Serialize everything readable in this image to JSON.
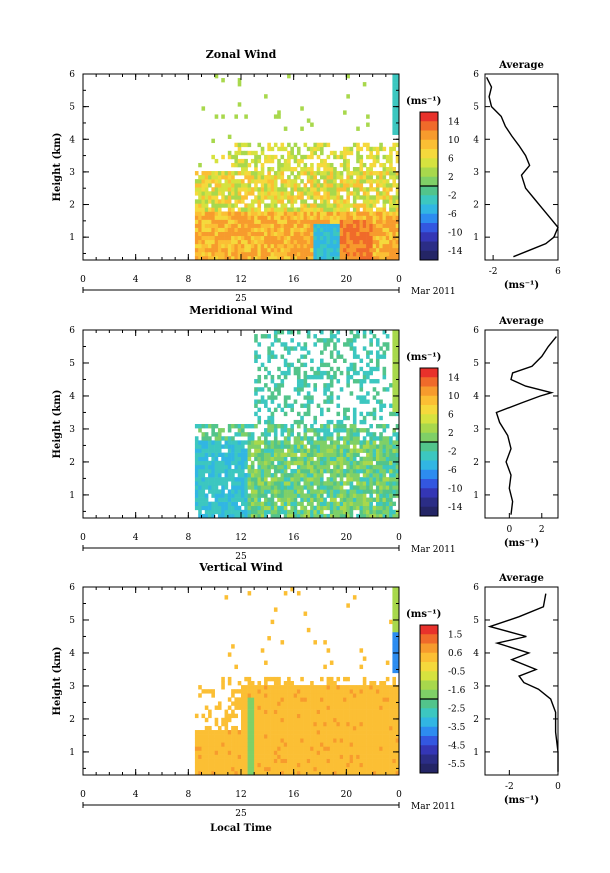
{
  "chart_data": [
    {
      "type": "heatmap",
      "title": "Zonal Wind",
      "ylabel": "Height (km)",
      "xlabel": "",
      "xlim": [
        0,
        24
      ],
      "ylim": [
        0.3,
        6
      ],
      "xticks": [
        "0",
        "4",
        "8",
        "12",
        "16",
        "20",
        "0"
      ],
      "yticks": [
        "1",
        "2",
        "3",
        "4",
        "5",
        "6"
      ],
      "date_day": "25",
      "date_month": "Mar 2011",
      "colorbar": {
        "unit_label": "(ms⁻¹)",
        "ticks": [
          "14",
          "10",
          "6",
          "2",
          "-2",
          "-6",
          "-10",
          "-14"
        ]
      },
      "profile": {
        "title": "Average",
        "xlabel": "(ms⁻¹)",
        "xticks": [
          "-2",
          "6"
        ],
        "x_range": [
          -3,
          6
        ],
        "points": [
          [
            0.5,
            0.4
          ],
          [
            2.5,
            0.6
          ],
          [
            4.5,
            0.8
          ],
          [
            5.5,
            1.0
          ],
          [
            6,
            1.3
          ],
          [
            5,
            1.6
          ],
          [
            4,
            1.9
          ],
          [
            3,
            2.2
          ],
          [
            2,
            2.5
          ],
          [
            1.5,
            2.9
          ],
          [
            2.5,
            3.2
          ],
          [
            2,
            3.5
          ],
          [
            1.2,
            3.8
          ],
          [
            0.3,
            4.1
          ],
          [
            -0.5,
            4.4
          ],
          [
            -1,
            4.7
          ],
          [
            -2.2,
            5.0
          ],
          [
            -2.5,
            5.3
          ],
          [
            -2.2,
            5.6
          ],
          [
            -2.8,
            5.9
          ]
        ]
      },
      "show_local_time": false
    },
    {
      "type": "heatmap",
      "title": "Meridional Wind",
      "ylabel": "Height (km)",
      "xlabel": "",
      "xlim": [
        0,
        24
      ],
      "ylim": [
        0.3,
        6
      ],
      "xticks": [
        "0",
        "4",
        "8",
        "12",
        "16",
        "20",
        "0"
      ],
      "yticks": [
        "1",
        "2",
        "3",
        "4",
        "5",
        "6"
      ],
      "date_day": "25",
      "date_month": "Mar 2011",
      "colorbar": {
        "unit_label": "(ms⁻¹)",
        "ticks": [
          "14",
          "10",
          "6",
          "2",
          "-2",
          "-6",
          "-10",
          "-14"
        ]
      },
      "profile": {
        "title": "Average",
        "xlabel": "(ms⁻¹)",
        "xticks": [
          "0",
          "2"
        ],
        "x_range": [
          -1.5,
          3
        ],
        "points": [
          [
            0.1,
            0.4
          ],
          [
            0.2,
            0.8
          ],
          [
            0,
            1.2
          ],
          [
            0.1,
            1.6
          ],
          [
            -0.2,
            2.0
          ],
          [
            0.1,
            2.4
          ],
          [
            -0.1,
            2.8
          ],
          [
            -0.6,
            3.2
          ],
          [
            -0.8,
            3.5
          ],
          [
            0.8,
            3.8
          ],
          [
            1.9,
            4.0
          ],
          [
            2.6,
            4.1
          ],
          [
            1.0,
            4.3
          ],
          [
            0.1,
            4.5
          ],
          [
            0.2,
            4.7
          ],
          [
            1.4,
            4.9
          ],
          [
            2.0,
            5.2
          ],
          [
            2.4,
            5.5
          ],
          [
            2.9,
            5.8
          ]
        ]
      },
      "show_local_time": false
    },
    {
      "type": "heatmap",
      "title": "Vertical Wind",
      "ylabel": "Height (km)",
      "xlabel": "Local Time",
      "xlim": [
        0,
        24
      ],
      "ylim": [
        0.3,
        6
      ],
      "xticks": [
        "0",
        "4",
        "8",
        "12",
        "16",
        "20",
        "0"
      ],
      "yticks": [
        "1",
        "2",
        "3",
        "4",
        "5",
        "6"
      ],
      "date_day": "25",
      "date_month": "Mar 2011",
      "colorbar": {
        "unit_label": "(ms⁻¹)",
        "ticks": [
          "1.5",
          "0.6",
          "-0.5",
          "-1.6",
          "-2.5",
          "-3.5",
          "-4.5",
          "-5.5"
        ]
      },
      "profile": {
        "title": "Average",
        "xlabel": "(ms⁻¹)",
        "xticks": [
          "-2",
          "0"
        ],
        "x_range": [
          -3,
          0
        ],
        "points": [
          [
            0,
            0.4
          ],
          [
            0,
            1.0
          ],
          [
            -0.1,
            1.6
          ],
          [
            -0.1,
            2.2
          ],
          [
            -0.3,
            2.6
          ],
          [
            -0.8,
            2.9
          ],
          [
            -1.4,
            3.1
          ],
          [
            -1.6,
            3.3
          ],
          [
            -0.9,
            3.5
          ],
          [
            -1.9,
            3.8
          ],
          [
            -1.2,
            4.0
          ],
          [
            -2.5,
            4.3
          ],
          [
            -1.3,
            4.5
          ],
          [
            -2.8,
            4.8
          ],
          [
            -1.6,
            5.1
          ],
          [
            -0.6,
            5.4
          ],
          [
            -0.5,
            5.8
          ]
        ]
      },
      "show_local_time": true
    }
  ]
}
